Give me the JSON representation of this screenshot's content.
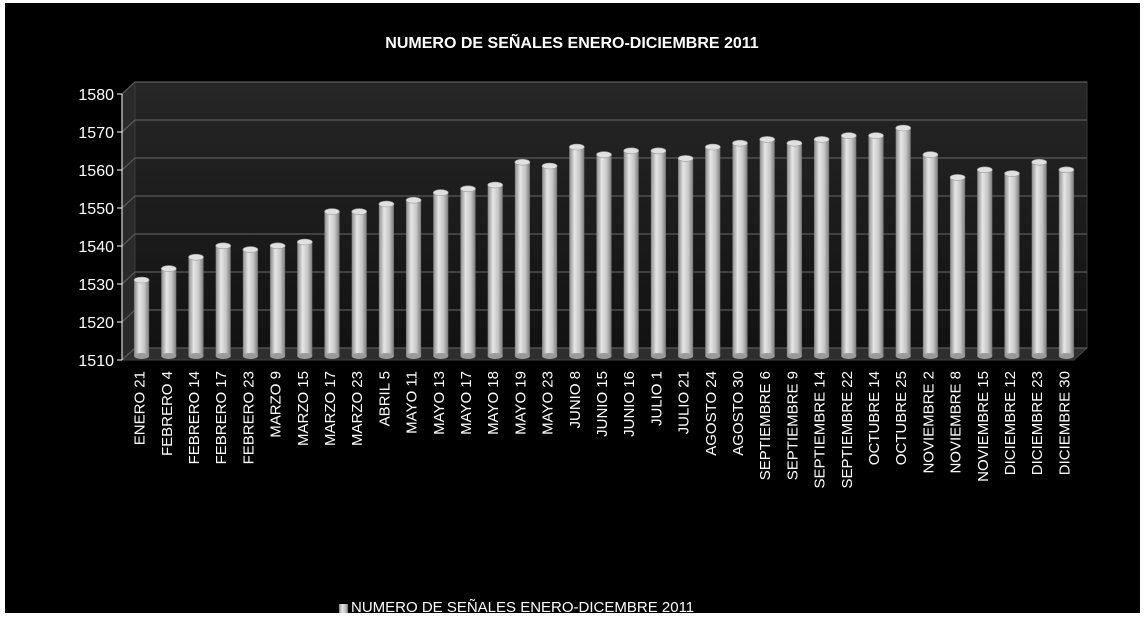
{
  "chart_data": {
    "type": "bar",
    "title": "NUMERO DE SEÑALES ENERO-DICIEMBRE 2011",
    "xlabel": "",
    "ylabel": "",
    "ylim": [
      1510,
      1580
    ],
    "yticks": [
      "1510",
      "1520",
      "1530",
      "1540",
      "1550",
      "1560",
      "1570",
      "1580"
    ],
    "grid": true,
    "legend_position": "bottom",
    "categories": [
      "ENERO 21",
      "FEBRERO 4",
      "FEBRERO 14",
      "FEBRERO 17",
      "FEBRERO 23",
      "MARZO 9",
      "MARZO 15",
      "MARZO 17",
      "MARZO 23",
      "ABRIL 5",
      "MAYO 11",
      "MAYO 13",
      "MAYO 17",
      "MAYO 18",
      "MAYO 19",
      "MAYO 23",
      "JUNIO 8",
      "JUNIO 15",
      "JUNIO 16",
      "JULIO 1",
      "JULIO 21",
      "AGOSTO 24",
      "AGOSTO 30",
      "SEPTIEMBRE 6",
      "SEPTIEMBRE 9",
      "SEPTIEMBRE 14",
      "SEPTIEMBRE 22",
      "OCTUBRE 14",
      "OCTUBRE 25",
      "NOVIEMBRE 2",
      "NOVIEMBRE 8",
      "NOVIEMBRE 15",
      "DICIEMBRE 12",
      "DICIEMBRE 23",
      "DICIEMBRE 30"
    ],
    "series": [
      {
        "name": "NUMERO DE SEÑALES ENERO-DICEMBRE 2011",
        "values": [
          1530,
          1533,
          1536,
          1539,
          1538,
          1539,
          1540,
          1548,
          1548,
          1550,
          1551,
          1553,
          1554,
          1555,
          1561,
          1560,
          1565,
          1563,
          1564,
          1564,
          1562,
          1565,
          1566,
          1567,
          1566,
          1567,
          1568,
          1568,
          1570,
          1563,
          1557,
          1559,
          1558,
          1561,
          1559
        ]
      }
    ],
    "colors": {
      "background": "#000000",
      "bar": "#c8c8c8",
      "wall": "#1c1c1c",
      "grid": "#5a5a5a",
      "text": "#ffffff"
    }
  }
}
